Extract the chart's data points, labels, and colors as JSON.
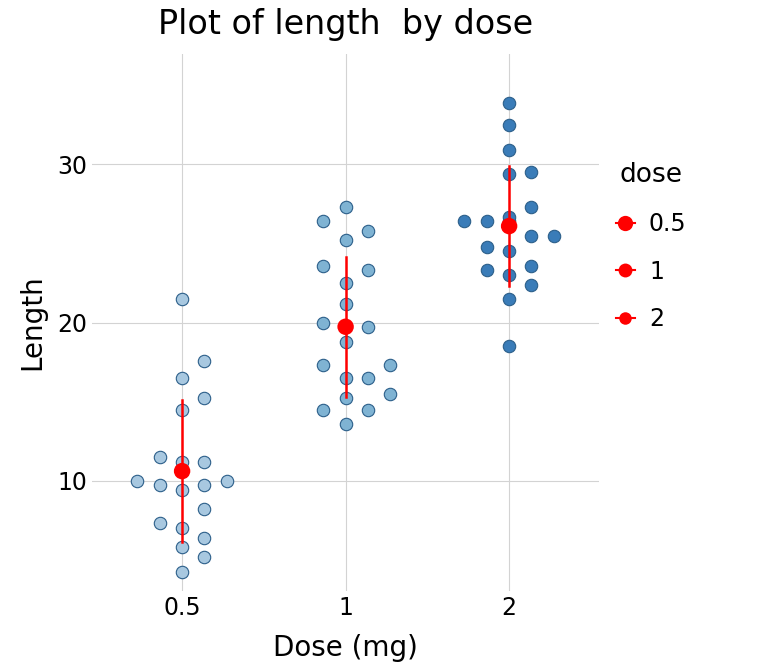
{
  "title": "Plot of length  by dose",
  "xlabel": "Dose (mg)",
  "ylabel": "Length",
  "title_fontsize": 24,
  "axis_label_fontsize": 20,
  "tick_fontsize": 17,
  "background_color": "#FFFFFF",
  "panel_background": "#FFFFFF",
  "grid_color": "#D3D3D3",
  "dot_color_05": "#A8C8E0",
  "dot_color_1": "#7FB3D3",
  "dot_color_2": "#3A7CB8",
  "dot_edge_color": "#2C5F8A",
  "mean_color": "#FF0000",
  "ylim": [
    3,
    37
  ],
  "yticks": [
    10,
    20,
    30
  ],
  "xtick_labels": [
    "0.5",
    "1",
    "2"
  ],
  "dose_05": [
    4.2,
    11.5,
    7.3,
    5.8,
    6.4,
    10.0,
    11.2,
    11.2,
    5.2,
    7.0,
    15.2,
    21.5,
    17.6,
    9.7,
    14.5,
    10.0,
    8.2,
    9.4,
    16.5,
    9.7
  ],
  "dose_1": [
    16.5,
    16.5,
    15.2,
    17.3,
    22.5,
    17.3,
    13.6,
    14.5,
    18.8,
    15.5,
    19.7,
    23.3,
    23.6,
    26.4,
    20.0,
    25.2,
    25.8,
    21.2,
    14.5,
    27.3
  ],
  "dose_2": [
    23.6,
    18.5,
    33.9,
    25.5,
    26.4,
    32.5,
    26.7,
    21.5,
    23.3,
    29.5,
    25.5,
    26.4,
    22.4,
    24.5,
    24.8,
    30.9,
    26.4,
    27.3,
    29.4,
    23.0
  ],
  "legend_title": "dose",
  "legend_fontsize": 17,
  "legend_title_fontsize": 19
}
